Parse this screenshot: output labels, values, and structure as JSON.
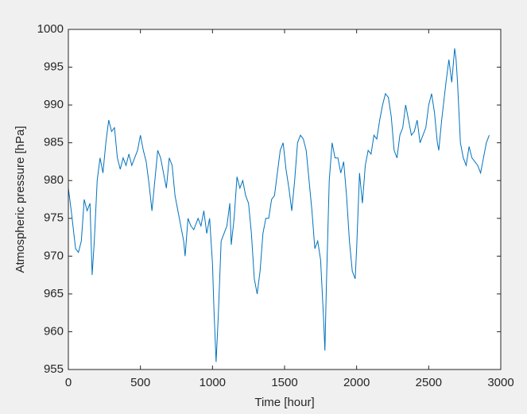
{
  "chart_data": {
    "type": "line",
    "xlabel": "Time [hour]",
    "ylabel": "Atmospheric pressure [hPa]",
    "x": [
      0,
      20,
      50,
      70,
      90,
      110,
      130,
      150,
      165,
      180,
      200,
      220,
      240,
      260,
      280,
      300,
      320,
      340,
      360,
      380,
      400,
      420,
      440,
      460,
      480,
      500,
      520,
      540,
      560,
      580,
      600,
      620,
      640,
      660,
      680,
      700,
      720,
      740,
      760,
      780,
      800,
      810,
      830,
      850,
      870,
      900,
      920,
      940,
      960,
      980,
      1000,
      1010,
      1025,
      1040,
      1060,
      1080,
      1100,
      1120,
      1130,
      1150,
      1170,
      1190,
      1210,
      1230,
      1250,
      1270,
      1290,
      1310,
      1330,
      1350,
      1370,
      1390,
      1410,
      1430,
      1450,
      1470,
      1490,
      1510,
      1530,
      1550,
      1570,
      1590,
      1610,
      1630,
      1650,
      1670,
      1690,
      1710,
      1730,
      1750,
      1770,
      1780,
      1790,
      1810,
      1830,
      1850,
      1870,
      1890,
      1910,
      1930,
      1950,
      1970,
      1990,
      2000,
      2020,
      2040,
      2060,
      2080,
      2100,
      2120,
      2140,
      2160,
      2180,
      2200,
      2220,
      2240,
      2260,
      2280,
      2300,
      2320,
      2340,
      2360,
      2380,
      2400,
      2420,
      2440,
      2460,
      2480,
      2500,
      2520,
      2540,
      2560,
      2570,
      2590,
      2620,
      2640,
      2660,
      2680,
      2690,
      2700,
      2720,
      2740,
      2760,
      2780,
      2800,
      2820,
      2840,
      2860,
      2880,
      2900,
      2920
    ],
    "series": [
      {
        "name": "pressure",
        "color": "#0072bd",
        "values": [
          979,
          976,
          971,
          970.5,
          972,
          977.5,
          976,
          977,
          967.5,
          972,
          980,
          983,
          981,
          985,
          988,
          986.5,
          987,
          983,
          981.5,
          983,
          982,
          983.5,
          982,
          983,
          984,
          986,
          984,
          982.5,
          979.5,
          976,
          980,
          984,
          983,
          981,
          979,
          983,
          982,
          978,
          976,
          974,
          972,
          970,
          975,
          974,
          973.5,
          975,
          974,
          976,
          973,
          975,
          969,
          963,
          956,
          962,
          972,
          973,
          974,
          977,
          971.5,
          975,
          980.5,
          979,
          980,
          978,
          977,
          973,
          967,
          965,
          968,
          973,
          975,
          975,
          977.5,
          978,
          981,
          984,
          985,
          981.5,
          979,
          976,
          980,
          985,
          986,
          985.5,
          984,
          980,
          976,
          971,
          972,
          969.5,
          962,
          957.5,
          966,
          980,
          985,
          983,
          983,
          981,
          982.5,
          978,
          972,
          968,
          967,
          971,
          981,
          977,
          982,
          984,
          983.5,
          986,
          985.5,
          988,
          990,
          991.5,
          991,
          988.5,
          984,
          983,
          986,
          987,
          990,
          988,
          986,
          986.5,
          988,
          985,
          986,
          987,
          990,
          991.5,
          989,
          985,
          984,
          988,
          993,
          996,
          993,
          997.5,
          996,
          993,
          985,
          983,
          982,
          984.5,
          983,
          982.5,
          982,
          981,
          983,
          985,
          986
        ]
      }
    ],
    "xlim": [
      0,
      3000
    ],
    "xticks": [
      0,
      500,
      1000,
      1500,
      2000,
      2500,
      3000
    ],
    "ylim": [
      955,
      1000
    ],
    "yticks": [
      955,
      960,
      965,
      970,
      975,
      980,
      985,
      990,
      995,
      1000
    ]
  }
}
